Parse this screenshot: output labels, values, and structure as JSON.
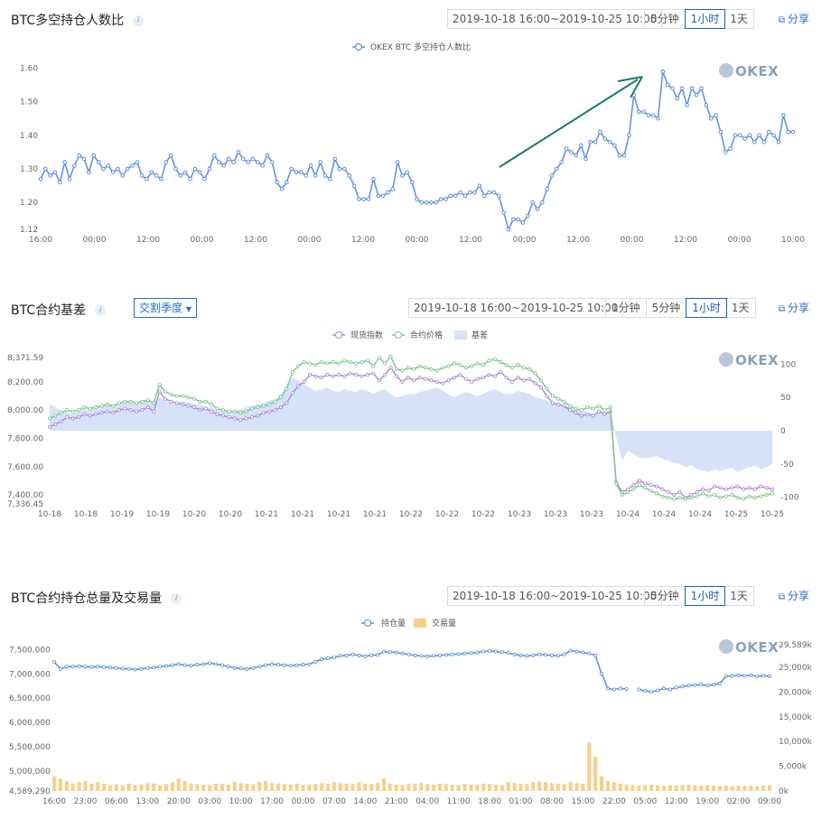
{
  "panel1": {
    "title": "BTC多空持仓人数比",
    "date_range": "2019-10-18 16:00~2019-10-25 10:00",
    "periods": [
      "5分钟",
      "1小时",
      "1天"
    ],
    "active_period": "1小时",
    "share": "分享",
    "logo": "OKEX",
    "legend": "OKEX BTC 多空持仓人数比"
  },
  "panel2": {
    "title": "BTC合约基差",
    "dropdown": "交割季度",
    "date_range": "2019-10-18 16:00~2019-10-25 10:00",
    "periods": [
      "1分钟",
      "5分钟",
      "1小时",
      "1天"
    ],
    "active_period": "1小时",
    "share": "分享",
    "logo": "OKEX",
    "legend": [
      "现货指数",
      "合约价格",
      "基差"
    ]
  },
  "panel3": {
    "title": "BTC合约持仓总量及交易量",
    "date_range": "2019-10-18 16:00~2019-10-25 10:00",
    "periods": [
      "5分钟",
      "1小时",
      "1天"
    ],
    "active_period": "1小时",
    "share": "分享",
    "logo": "OKEX",
    "legend": [
      "持仓量",
      "交易量"
    ]
  },
  "colors": {
    "line_blue": "#5b8ee0",
    "spot_purple": "#a78bd6",
    "contract_green": "#7cc68a",
    "basis_fill": "#d6e2f8",
    "volume_bar": "#f8d08a",
    "arrow": "#1a7a6c",
    "accent": "#1e5fb4"
  },
  "chart_data": [
    {
      "type": "line",
      "title": "BTC多空持仓人数比",
      "series": [
        {
          "name": "OKEX BTC 多空持仓人数比",
          "values": [
            1.27,
            1.3,
            1.28,
            1.29,
            1.26,
            1.32,
            1.27,
            1.31,
            1.34,
            1.33,
            1.29,
            1.34,
            1.32,
            1.3,
            1.31,
            1.29,
            1.3,
            1.28,
            1.3,
            1.31,
            1.32,
            1.28,
            1.27,
            1.29,
            1.28,
            1.27,
            1.32,
            1.34,
            1.3,
            1.28,
            1.29,
            1.27,
            1.3,
            1.29,
            1.27,
            1.3,
            1.34,
            1.32,
            1.31,
            1.33,
            1.32,
            1.35,
            1.33,
            1.32,
            1.33,
            1.32,
            1.31,
            1.34,
            1.32,
            1.26,
            1.24,
            1.26,
            1.3,
            1.29,
            1.29,
            1.28,
            1.31,
            1.28,
            1.32,
            1.28,
            1.27,
            1.33,
            1.3,
            1.3,
            1.28,
            1.25,
            1.21,
            1.21,
            1.21,
            1.27,
            1.22,
            1.22,
            1.23,
            1.24,
            1.32,
            1.28,
            1.29,
            1.26,
            1.21,
            1.2,
            1.2,
            1.2,
            1.2,
            1.21,
            1.21,
            1.22,
            1.22,
            1.23,
            1.22,
            1.23,
            1.23,
            1.25,
            1.22,
            1.23,
            1.23,
            1.22,
            1.17,
            1.12,
            1.15,
            1.15,
            1.14,
            1.16,
            1.2,
            1.18,
            1.2,
            1.24,
            1.28,
            1.3,
            1.32,
            1.36,
            1.35,
            1.34,
            1.37,
            1.33,
            1.38,
            1.38,
            1.41,
            1.39,
            1.38,
            1.37,
            1.34,
            1.34,
            1.4,
            1.52,
            1.47,
            1.47,
            1.46,
            1.46,
            1.45,
            1.59,
            1.55,
            1.54,
            1.51,
            1.54,
            1.49,
            1.54,
            1.52,
            1.54,
            1.49,
            1.45,
            1.46,
            1.41,
            1.35,
            1.36,
            1.4,
            1.4,
            1.39,
            1.4,
            1.38,
            1.4,
            1.38,
            1.41,
            1.4,
            1.38,
            1.46,
            1.41,
            1.41
          ]
        }
      ],
      "x_tick_labels": [
        "16:00",
        "00:00",
        "12:00",
        "00:00",
        "12:00",
        "00:00",
        "12:00",
        "00:00",
        "12:00",
        "00:00",
        "12:00",
        "00:00",
        "12:00",
        "00:00",
        "10:00"
      ],
      "y_tick_labels": [
        "1.12",
        "1.20",
        "1.30",
        "1.40",
        "1.50",
        "1.60"
      ],
      "ylim": [
        1.12,
        1.62
      ],
      "grid": false,
      "legend_position": "top-center"
    },
    {
      "type": "line",
      "title": "BTC合约基差",
      "series": [
        {
          "name": "现货指数",
          "values": [
            7880,
            7900,
            7920,
            7950,
            7940,
            7950,
            7970,
            7960,
            7970,
            7980,
            7990,
            7980,
            8000,
            8010,
            8000,
            7990,
            8000,
            8020,
            7990,
            8130,
            8080,
            8060,
            8050,
            8040,
            8030,
            8020,
            8000,
            8010,
            7990,
            7970,
            7960,
            7950,
            7940,
            7930,
            7940,
            7950,
            7960,
            7980,
            7990,
            8000,
            8020,
            8050,
            8120,
            8170,
            8200,
            8250,
            8240,
            8230,
            8250,
            8240,
            8250,
            8240,
            8260,
            8250,
            8240,
            8250,
            8260,
            8210,
            8250,
            8300,
            8240,
            8200,
            8230,
            8210,
            8230,
            8220,
            8210,
            8200,
            8190,
            8210,
            8230,
            8250,
            8220,
            8200,
            8220,
            8230,
            8250,
            8240,
            8270,
            8230,
            8200,
            8230,
            8210,
            8220,
            8190,
            8160,
            8100,
            8050,
            8040,
            8030,
            8000,
            7980,
            7960,
            7970,
            7960,
            7990,
            7970,
            7990,
            7490,
            7420,
            7440,
            7470,
            7500,
            7480,
            7470,
            7460,
            7440,
            7420,
            7400,
            7420,
            7380,
            7400,
            7420,
            7440,
            7430,
            7460,
            7450,
            7440,
            7450,
            7460,
            7440,
            7450,
            7440,
            7460,
            7450,
            7440
          ]
        },
        {
          "name": "合约价格",
          "values": [
            7940,
            7960,
            7980,
            8000,
            7990,
            8000,
            8020,
            8010,
            8020,
            8030,
            8040,
            8030,
            8050,
            8060,
            8060,
            8050,
            8060,
            8070,
            8050,
            8180,
            8130,
            8110,
            8100,
            8100,
            8090,
            8080,
            8060,
            8060,
            8040,
            8010,
            8000,
            7990,
            7990,
            7980,
            7990,
            8010,
            8020,
            8030,
            8040,
            8060,
            8090,
            8150,
            8270,
            8310,
            8340,
            8330,
            8320,
            8340,
            8330,
            8340,
            8330,
            8350,
            8340,
            8330,
            8340,
            8350,
            8310,
            8370,
            8330,
            8380,
            8290,
            8280,
            8300,
            8290,
            8310,
            8300,
            8290,
            8280,
            8300,
            8310,
            8330,
            8320,
            8300,
            8310,
            8330,
            8320,
            8350,
            8360,
            8340,
            8320,
            8300,
            8320,
            8300,
            8290,
            8260,
            8210,
            8150,
            8100,
            8080,
            8060,
            8030,
            8010,
            8000,
            8020,
            8010,
            8030,
            8000,
            8020,
            7480,
            7400,
            7420,
            7440,
            7470,
            7450,
            7430,
            7410,
            7390,
            7380,
            7370,
            7380,
            7370,
            7380,
            7390,
            7410,
            7390,
            7400,
            7380,
            7390,
            7400,
            7380,
            7370,
            7390,
            7380,
            7390,
            7400,
            7410
          ]
        },
        {
          "name": "基差",
          "values": [
            40,
            35,
            30,
            28,
            25,
            30,
            33,
            30,
            35,
            38,
            40,
            38,
            42,
            45,
            42,
            40,
            45,
            48,
            42,
            50,
            45,
            42,
            40,
            45,
            42,
            40,
            40,
            35,
            35,
            30,
            30,
            28,
            30,
            32,
            35,
            38,
            40,
            42,
            45,
            48,
            55,
            70,
            80,
            75,
            70,
            65,
            60,
            62,
            65,
            60,
            58,
            62,
            60,
            58,
            62,
            60,
            55,
            60,
            62,
            55,
            50,
            52,
            55,
            55,
            58,
            60,
            62,
            65,
            60,
            55,
            50,
            55,
            58,
            55,
            52,
            55,
            60,
            62,
            58,
            55,
            55,
            60,
            58,
            55,
            50,
            48,
            45,
            42,
            40,
            38,
            35,
            32,
            30,
            28,
            25,
            30,
            28,
            30,
            -10,
            -45,
            -30,
            -35,
            -40,
            -42,
            -40,
            -38,
            -42,
            -45,
            -48,
            -50,
            -55,
            -52,
            -58,
            -60,
            -62,
            -58,
            -60,
            -58,
            -55,
            -62,
            -58,
            -55,
            -52,
            -58,
            -55,
            -50
          ]
        }
      ],
      "x_tick_labels": [
        "10-18",
        "10-18",
        "10-19",
        "10-19",
        "10-20",
        "10-20",
        "10-21",
        "10-21",
        "10-21",
        "10-21",
        "10-22",
        "10-22",
        "10-22",
        "10-23",
        "10-23",
        "10-23",
        "10-24",
        "10-24",
        "10-24",
        "10-25",
        "10-25"
      ],
      "y_left_tick_labels": [
        "7,336.45",
        "7,400.00",
        "7,600.00",
        "7,800.00",
        "8,000.00",
        "8,200.00",
        "8,371.59"
      ],
      "y_right_tick_labels": [
        "-100",
        "-50",
        "0",
        "50",
        "100"
      ],
      "ylim_left": [
        7336.45,
        8371.59
      ],
      "ylim_right": [
        -110,
        110
      ],
      "legend_position": "top-center"
    },
    {
      "type": "line",
      "title": "BTC合约持仓总量及交易量",
      "series": [
        {
          "name": "持仓量",
          "values": [
            7250000,
            7100000,
            7150000,
            7150000,
            7160000,
            7150000,
            7140000,
            7150000,
            7140000,
            7130000,
            7120000,
            7110000,
            7100000,
            7090000,
            7100000,
            7120000,
            7130000,
            7150000,
            7160000,
            7180000,
            7200000,
            7180000,
            7170000,
            7190000,
            7200000,
            7220000,
            7200000,
            7180000,
            7150000,
            7120000,
            7110000,
            7100000,
            7120000,
            7150000,
            7180000,
            7200000,
            7190000,
            7180000,
            7170000,
            7180000,
            7190000,
            7200000,
            7250000,
            7300000,
            7320000,
            7340000,
            7370000,
            7380000,
            7400000,
            7380000,
            7360000,
            7380000,
            7390000,
            7460000,
            7450000,
            7440000,
            7420000,
            7400000,
            7380000,
            7370000,
            7360000,
            7370000,
            7380000,
            7390000,
            7400000,
            7410000,
            7420000,
            7430000,
            7440000,
            7460000,
            7470000,
            7460000,
            7450000,
            7430000,
            7400000,
            7380000,
            7370000,
            7380000,
            7400000,
            7390000,
            7380000,
            7370000,
            7400000,
            7480000,
            7460000,
            7440000,
            7420000,
            7380000,
            7000000,
            6700000,
            6680000,
            6700000,
            6690000,
            null,
            6680000,
            6650000,
            6630000,
            6660000,
            6700000,
            6680000,
            6720000,
            6740000,
            6760000,
            6770000,
            6780000,
            6760000,
            6780000,
            6800000,
            6950000,
            6960000,
            6970000,
            6960000,
            6970000,
            6950000,
            6960000,
            6950000
          ]
        },
        {
          "name": "交易量",
          "values": [
            3000,
            2500,
            2000,
            1500,
            1800,
            2000,
            1500,
            1800,
            1500,
            1200,
            1400,
            1200,
            1500,
            1200,
            1300,
            1600,
            1500,
            1200,
            1400,
            1800,
            2500,
            2000,
            1500,
            1400,
            1300,
            1200,
            1500,
            1400,
            1300,
            1800,
            1600,
            1500,
            1400,
            1800,
            2000,
            1600,
            1500,
            1400,
            1300,
            1500,
            1200,
            1300,
            1400,
            1600,
            1500,
            1800,
            1600,
            1500,
            1400,
            1800,
            1500,
            1400,
            1600,
            2500,
            1500,
            1300,
            1200,
            1400,
            1500,
            1600,
            1400,
            1300,
            1500,
            1400,
            1300,
            1200,
            1400,
            1300,
            1200,
            1500,
            1400,
            1300,
            1200,
            1800,
            1600,
            1500,
            1400,
            1800,
            2000,
            1800,
            1600,
            1500,
            1400,
            1800,
            1600,
            1500,
            9800,
            7000,
            3000,
            2000,
            1800,
            1500,
            1300,
            1200,
            1100,
            1200,
            1300,
            1200,
            1100,
            1200,
            1100,
            1200,
            1300,
            1200,
            1100,
            1200,
            1100,
            1000,
            1100,
            1000,
            1100,
            1000,
            1100,
            1000,
            1100,
            1100
          ]
        }
      ],
      "x_tick_labels": [
        "16:00",
        "23:00",
        "06:00",
        "13:00",
        "20:00",
        "03:00",
        "10:00",
        "17:00",
        "00:00",
        "07:00",
        "14:00",
        "21:00",
        "04:00",
        "11:00",
        "18:00",
        "01:00",
        "08:00",
        "15:00",
        "22:00",
        "05:00",
        "12:00",
        "19:00",
        "02:00",
        "09:00"
      ],
      "y_left_tick_labels": [
        "4,589,290",
        "5,000,000",
        "5,500,000",
        "6,000,000",
        "6,500,000",
        "7,000,000",
        "7,500,000"
      ],
      "y_right_tick_labels": [
        "0k",
        "5,000k",
        "10,000k",
        "15,000k",
        "20,000k",
        "25,000k",
        "29,589k"
      ],
      "ylim_left": [
        4589290,
        7600000
      ],
      "ylim_right": [
        0,
        29589
      ],
      "legend_position": "top-center"
    }
  ]
}
